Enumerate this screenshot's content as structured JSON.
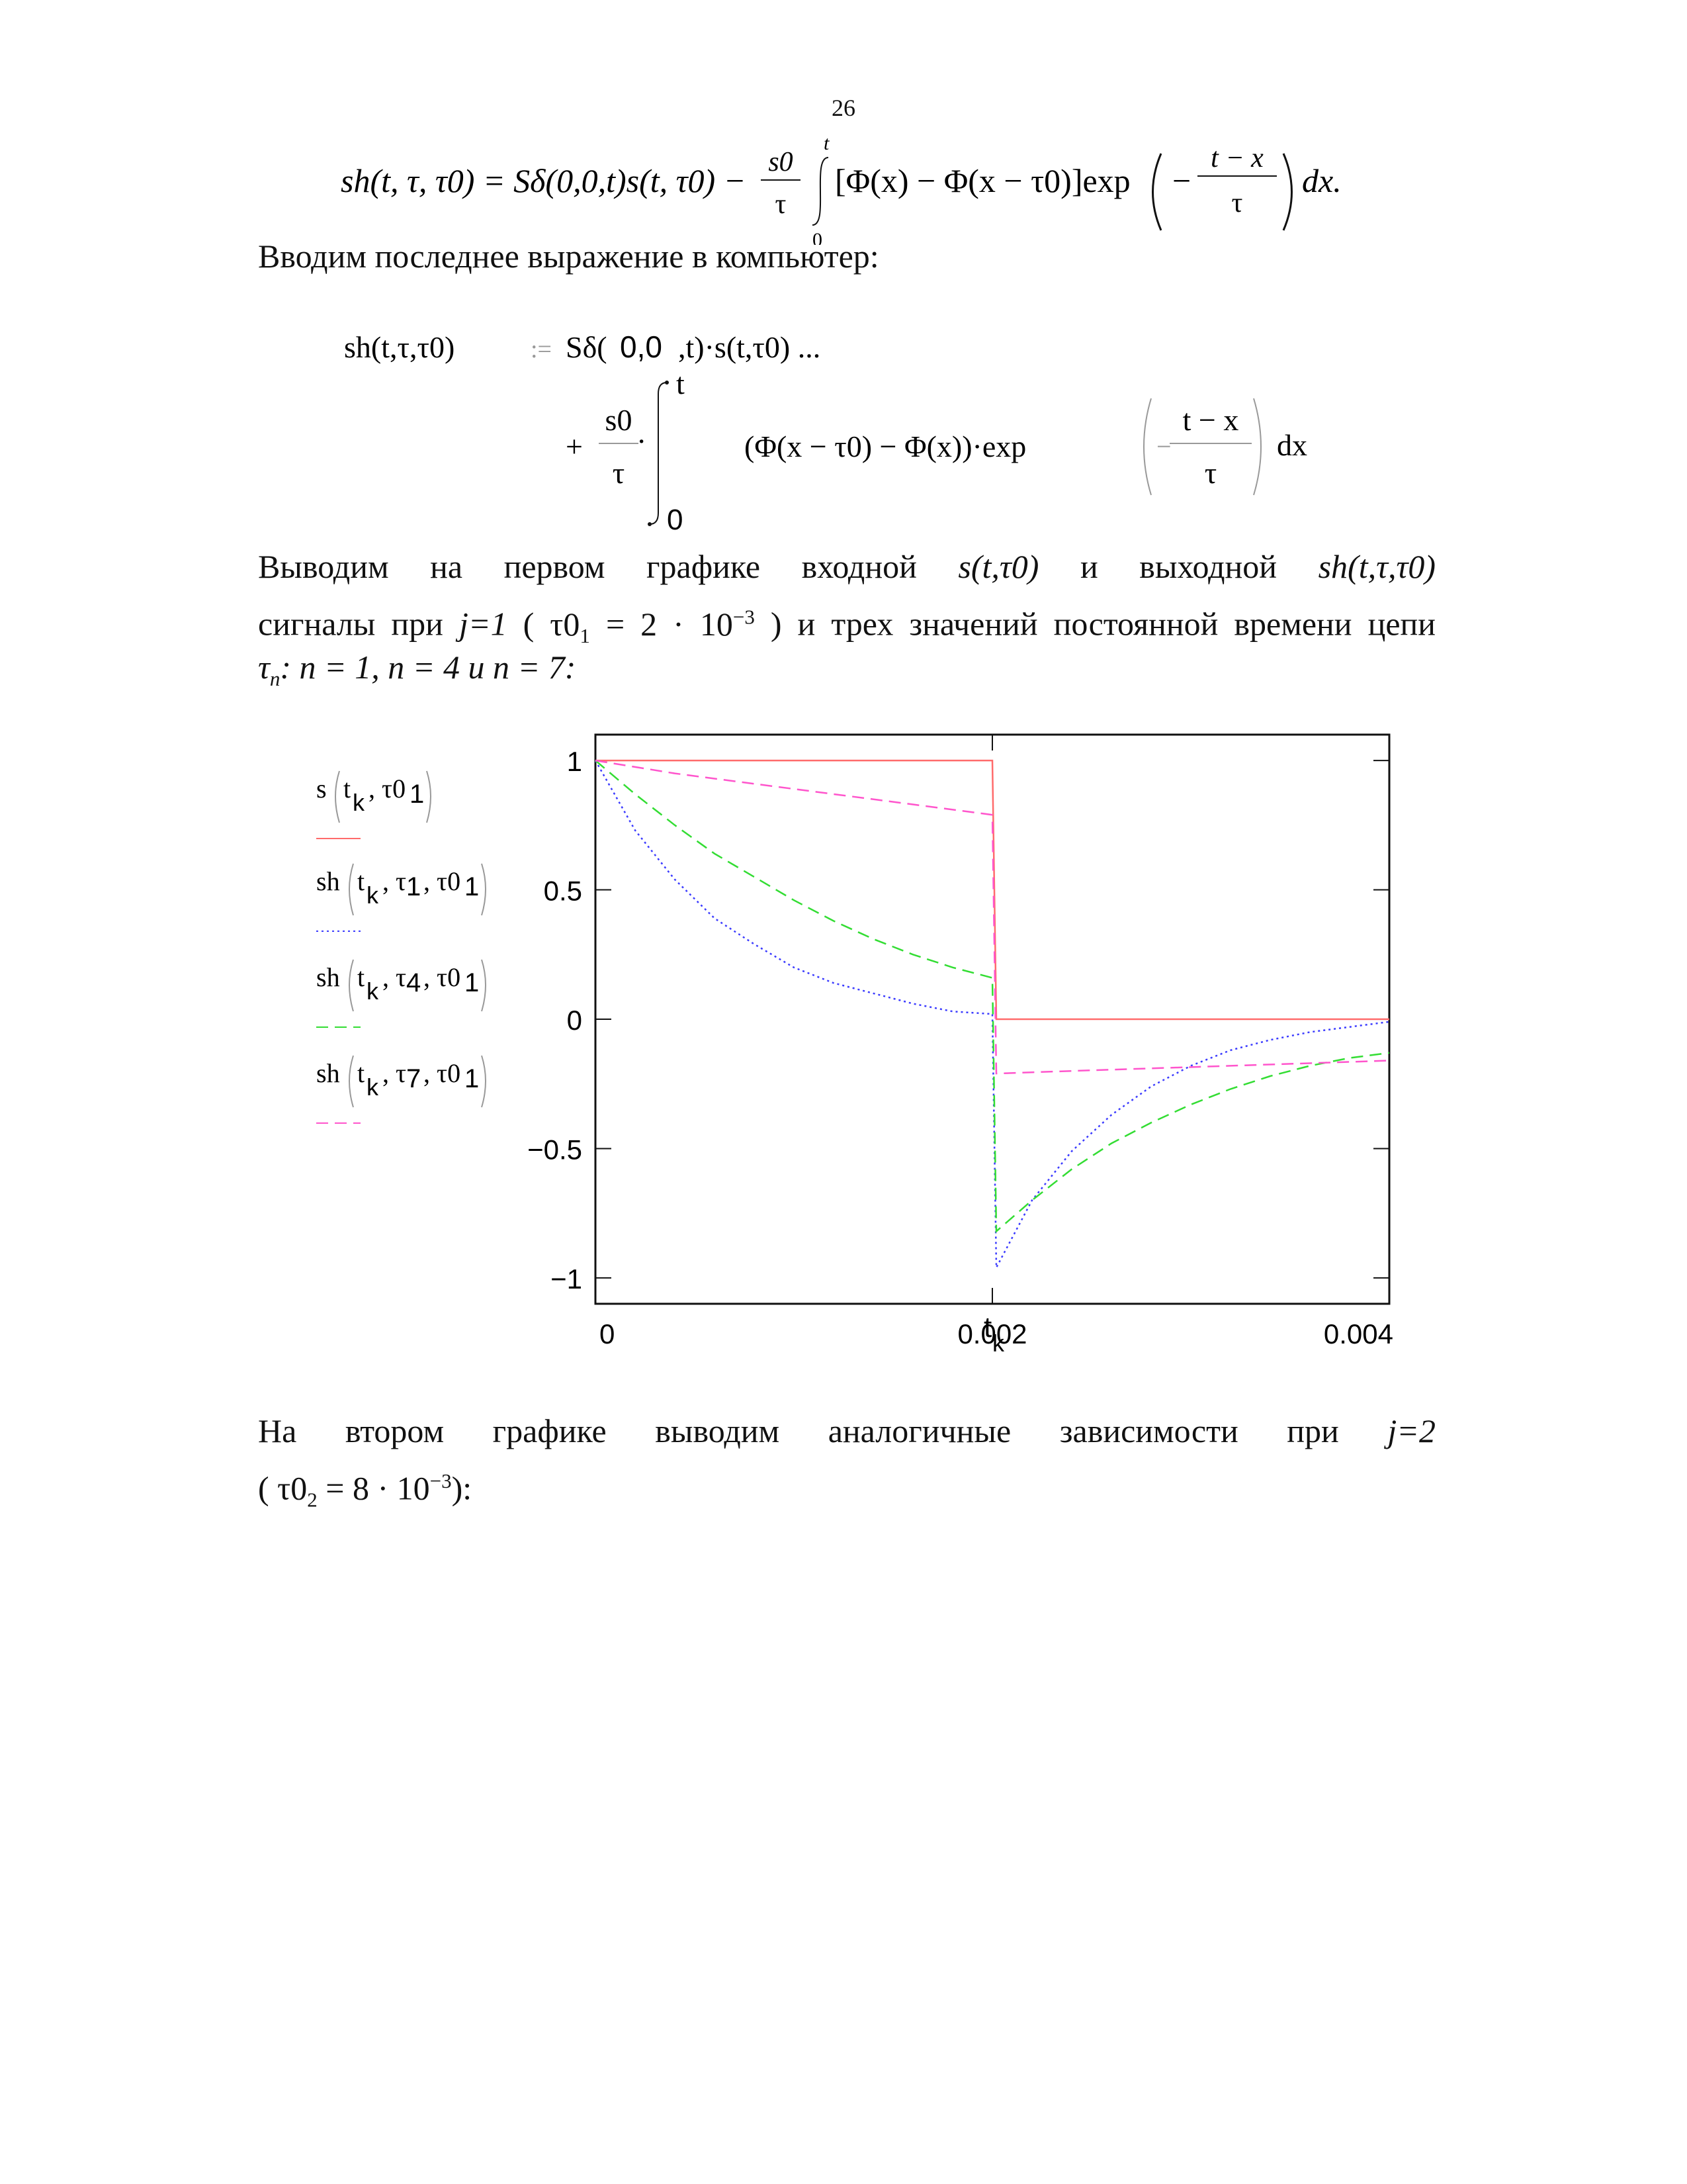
{
  "page": {
    "number": "26",
    "formula": {
      "lhs": "sh(t, τ, τ0) = Sδ(0,0,t)s(t, τ0) −",
      "frac_num": "s0",
      "frac_den": "τ",
      "int_upper": "t",
      "int_lower": "0",
      "body": "[Φ(x) − Φ(x − τ0)]exp",
      "exp_num": "t − x",
      "exp_den": "τ",
      "minus": "−",
      "tail": "dx."
    },
    "text_intro": "Вводим последнее выражение в компьютер:",
    "mathcad": {
      "line1_lhs": "sh(t,τ,τ0)",
      "assign": ":=",
      "line1_rhs_a": "Sδ(",
      "line1_rhs_zero": "0,0",
      "line1_rhs_b": ",t)·s(t,τ0) ...",
      "plus": "+",
      "frac_num": "s0",
      "frac_den": "τ",
      "dot": "·",
      "int_upper": "t",
      "int_lower": "0",
      "body": "(Φ(x − τ0) − Φ(x))·exp",
      "exp_minus": "−",
      "exp_num": "t − x",
      "exp_den": "τ",
      "dx": "dx"
    },
    "para1": {
      "line1_a": "Выводим на первом графике входной",
      "line1_s": "s(t,τ0)",
      "line1_and": "и выходной",
      "line1_sh": "sh(t,τ,τ0)",
      "line2_a": "сигналы при",
      "line2_j": "j=1",
      "line2_b": "( τ0",
      "line2_sub": "1",
      "line2_c": "= 2 · 10",
      "line2_sup": "−3",
      "line2_d": ") и трех значений постоянной времени цепи",
      "line3_tau": "τ",
      "line3_sub": "n",
      "line3_rest": ":  n = 1,  n = 4  и  n = 7:"
    },
    "para2": {
      "line1": "На втором графике выводим аналогичные зависимости при",
      "line1_j": "j=2",
      "line2_a": "( τ0",
      "line2_sub": "2",
      "line2_b": "= 8 · 10",
      "line2_sup": "−3",
      "line2_c": "):"
    }
  },
  "chart_data": {
    "type": "line",
    "xlabel": "t",
    "xlabel_sub": "k",
    "xlim": [
      0,
      0.004
    ],
    "ylim": [
      -1.1,
      1.1
    ],
    "x_ticks": [
      "0",
      "0.002",
      "0.004"
    ],
    "x_tick_values": [
      0,
      0.002,
      0.004
    ],
    "y_ticks": [
      "1",
      "0.5",
      "0",
      "−0.5",
      "−1"
    ],
    "y_tick_values": [
      1,
      0.5,
      0,
      -0.5,
      -1
    ],
    "grid": false,
    "legend_position": "left",
    "series": [
      {
        "legend": {
          "func": "s",
          "args": "t",
          "args_sub": "k",
          "rest": ", τ0",
          "rest_sub": "1"
        },
        "color": "#ff6b6b",
        "dash": "solid",
        "x": [
          0,
          0.002,
          0.00202,
          0.004
        ],
        "y": [
          1,
          1,
          0,
          0
        ]
      },
      {
        "legend": {
          "func": "sh",
          "args": "t",
          "args_sub": "k",
          "tau": ", τ",
          "tau_sub": "1",
          "rest": ", τ0",
          "rest_sub": "1"
        },
        "color": "#3b3bff",
        "dash": "dotted",
        "x": [
          0,
          0.0002,
          0.0004,
          0.0006,
          0.0008,
          0.001,
          0.0012,
          0.0014,
          0.0016,
          0.0018,
          0.002,
          0.00202,
          0.0022,
          0.0024,
          0.0026,
          0.0028,
          0.003,
          0.0032,
          0.0034,
          0.0036,
          0.0038,
          0.004
        ],
        "y": [
          1,
          0.73,
          0.54,
          0.39,
          0.29,
          0.2,
          0.14,
          0.1,
          0.06,
          0.03,
          0.02,
          -0.96,
          -0.7,
          -0.51,
          -0.37,
          -0.26,
          -0.18,
          -0.12,
          -0.08,
          -0.05,
          -0.03,
          -0.01
        ]
      },
      {
        "legend": {
          "func": "sh",
          "args": "t",
          "args_sub": "k",
          "tau": ", τ",
          "tau_sub": "4",
          "rest": ", τ0",
          "rest_sub": "1"
        },
        "color": "#33dd33",
        "dash": "dashed",
        "x": [
          0,
          0.0002,
          0.0004,
          0.0006,
          0.0008,
          0.001,
          0.0012,
          0.0014,
          0.0016,
          0.0018,
          0.002,
          0.00202,
          0.0022,
          0.0024,
          0.0026,
          0.0028,
          0.003,
          0.0032,
          0.0034,
          0.0036,
          0.0038,
          0.004
        ],
        "y": [
          1,
          0.87,
          0.75,
          0.64,
          0.55,
          0.46,
          0.38,
          0.31,
          0.25,
          0.2,
          0.16,
          -0.82,
          -0.7,
          -0.58,
          -0.48,
          -0.4,
          -0.33,
          -0.27,
          -0.22,
          -0.18,
          -0.15,
          -0.13
        ]
      },
      {
        "legend": {
          "func": "sh",
          "args": "t",
          "args_sub": "k",
          "tau": ", τ",
          "tau_sub": "7",
          "rest": ", τ0",
          "rest_sub": "1"
        },
        "color": "#ff55cc",
        "dash": "dashed",
        "x": [
          0,
          0.0004,
          0.0008,
          0.0012,
          0.0016,
          0.002,
          0.00202,
          0.0024,
          0.0028,
          0.0032,
          0.0036,
          0.004
        ],
        "y": [
          1,
          0.95,
          0.91,
          0.87,
          0.83,
          0.79,
          -0.21,
          -0.2,
          -0.19,
          -0.18,
          -0.17,
          -0.16
        ]
      }
    ]
  }
}
